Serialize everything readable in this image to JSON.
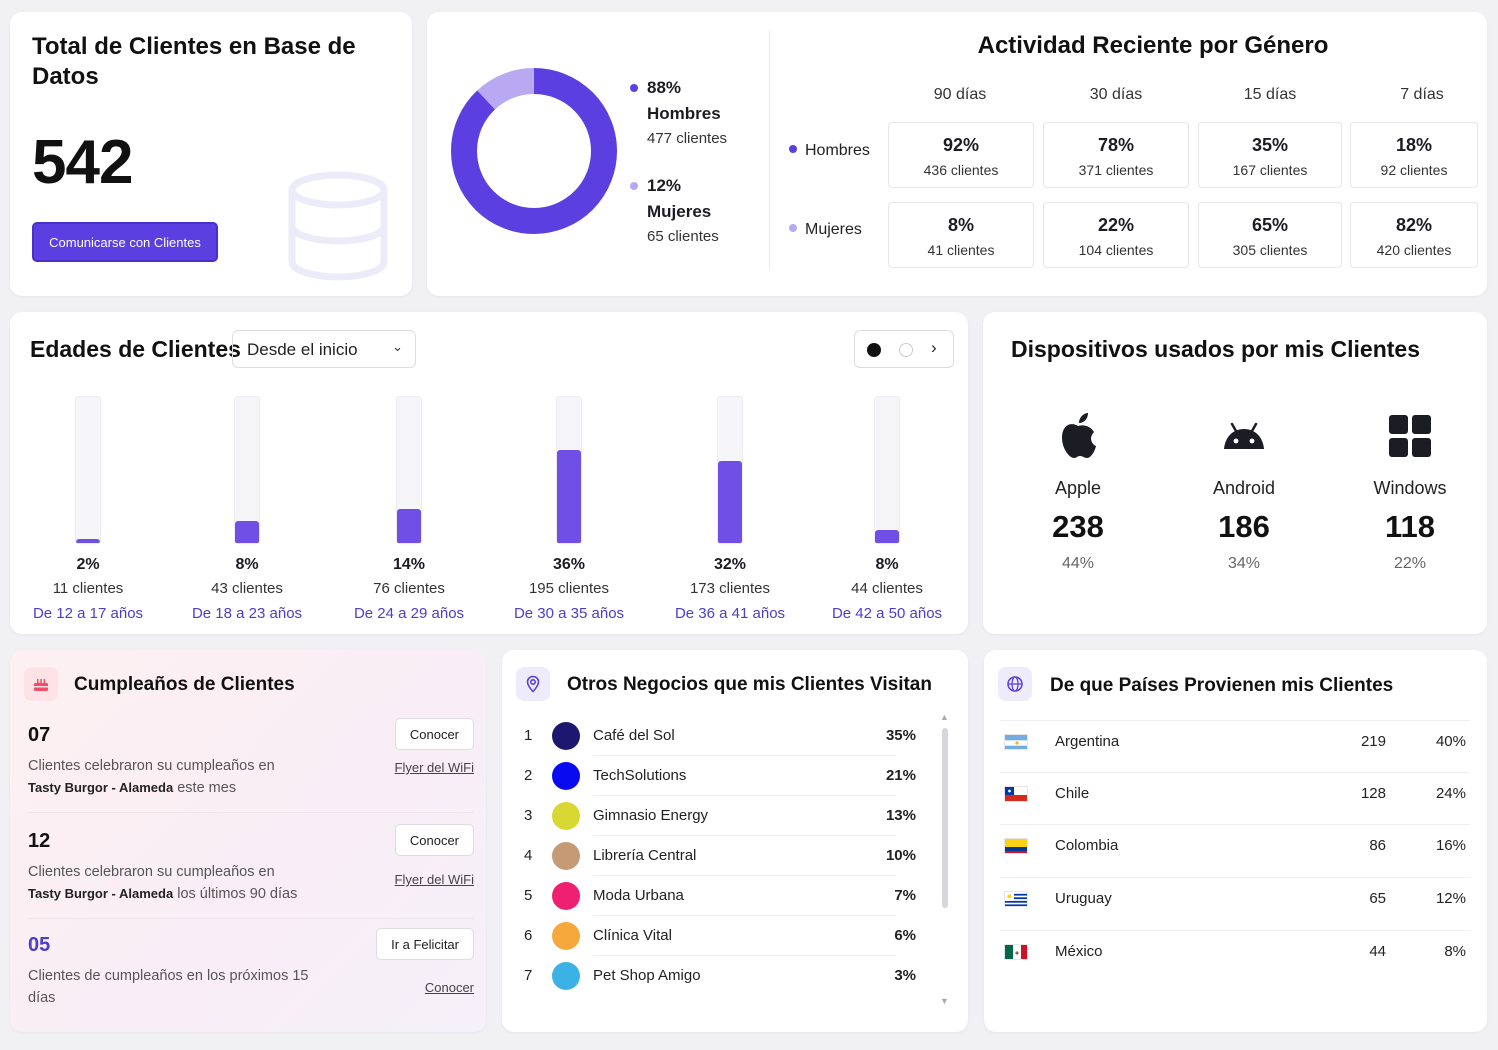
{
  "total": {
    "title": "Total de Clientes en Base de Datos",
    "count": "542",
    "button": "Comunicarse con Clientes",
    "icon": "database-icon"
  },
  "gender": {
    "legend": [
      {
        "pct": "88%",
        "name": "Hombres",
        "clients": "477 clientes",
        "color": "#5b3fe0"
      },
      {
        "pct": "12%",
        "name": "Mujeres",
        "clients": "65 clientes",
        "color": "#b9a9f3"
      }
    ],
    "donut": {
      "hombres_fraction": 0.88,
      "mujeres_fraction": 0.12
    },
    "activity": {
      "title": "Actividad Reciente por Género",
      "periods": [
        "90 días",
        "30 días",
        "15 días",
        "7 días"
      ],
      "rows": [
        {
          "label": "Hombres",
          "color": "#5b3fe0",
          "cells": [
            {
              "pct": "92%",
              "clients": "436 clientes"
            },
            {
              "pct": "78%",
              "clients": "371 clientes"
            },
            {
              "pct": "35%",
              "clients": "167 clientes"
            },
            {
              "pct": "18%",
              "clients": "92 clientes"
            }
          ]
        },
        {
          "label": "Mujeres",
          "color": "#b9a9f3",
          "cells": [
            {
              "pct": "8%",
              "clients": "41 clientes"
            },
            {
              "pct": "22%",
              "clients": "104 clientes"
            },
            {
              "pct": "65%",
              "clients": "305 clientes"
            },
            {
              "pct": "82%",
              "clients": "420 clientes"
            }
          ]
        }
      ]
    }
  },
  "ages": {
    "title": "Edades de Clientes",
    "filter": "Desde el inicio",
    "groups": [
      {
        "pct": "2%",
        "clients": "11 clientes",
        "range": "De 12 a 17 años",
        "fill": 0.03
      },
      {
        "pct": "8%",
        "clients": "43 clientes",
        "range": "De 18 a 23 años",
        "fill": 0.15
      },
      {
        "pct": "14%",
        "clients": "76 clientes",
        "range": "De 24 a 29 años",
        "fill": 0.23
      },
      {
        "pct": "36%",
        "clients": "195 clientes",
        "range": "De 30 a 35 años",
        "fill": 0.64
      },
      {
        "pct": "32%",
        "clients": "173 clientes",
        "range": "De 36 a 41 años",
        "fill": 0.56
      },
      {
        "pct": "8%",
        "clients": "44 clientes",
        "range": "De 42 a 50 años",
        "fill": 0.09
      }
    ],
    "accent": "#6f4fe6"
  },
  "devices": {
    "title": "Dispositivos usados por mis Clientes",
    "items": [
      {
        "name": "Apple",
        "count": "238",
        "pct": "44%",
        "icon": "apple-icon"
      },
      {
        "name": "Android",
        "count": "186",
        "pct": "34%",
        "icon": "android-icon"
      },
      {
        "name": "Windows",
        "count": "118",
        "pct": "22%",
        "icon": "windows-icon"
      }
    ]
  },
  "birthdays": {
    "title": "Cumpleaños de Clientes",
    "items": [
      {
        "num": "07",
        "text": "Clientes celebraron su cumpleaños en",
        "place": "Tasty Burgor - Alameda",
        "suffix": "este mes",
        "button": "Conocer",
        "link": "Flyer del WiFi"
      },
      {
        "num": "12",
        "text": "Clientes celebraron su cumpleaños en",
        "place": "Tasty Burgor - Alameda",
        "suffix": "los últimos 90 días",
        "button": "Conocer",
        "link": "Flyer del WiFi"
      },
      {
        "num": "05",
        "text": "Clientes de cumpleaños en los próximos 15 días",
        "button": "Ir a Felicitar",
        "link": "Conocer"
      }
    ]
  },
  "businesses": {
    "title": "Otros Negocios que mis Clientes Visitan",
    "items": [
      {
        "rank": "1",
        "name": "Café del Sol",
        "pct": "35%",
        "color": "#1e1770"
      },
      {
        "rank": "2",
        "name": "TechSolutions",
        "pct": "21%",
        "color": "#0a0af0"
      },
      {
        "rank": "3",
        "name": "Gimnasio Energy",
        "pct": "13%",
        "color": "#d8d832"
      },
      {
        "rank": "4",
        "name": "Librería Central",
        "pct": "10%",
        "color": "#c69a74"
      },
      {
        "rank": "5",
        "name": "Moda Urbana",
        "pct": "7%",
        "color": "#ef1f72"
      },
      {
        "rank": "6",
        "name": "Clínica Vital",
        "pct": "6%",
        "color": "#f5a93c"
      },
      {
        "rank": "7",
        "name": "Pet Shop Amigo",
        "pct": "3%",
        "color": "#3bb1e6"
      }
    ]
  },
  "countries": {
    "title": "De que Países Provienen mis Clientes",
    "items": [
      {
        "name": "Argentina",
        "value": "219",
        "pct": "40%",
        "flag": "argentina-flag-icon"
      },
      {
        "name": "Chile",
        "value": "128",
        "pct": "24%",
        "flag": "chile-flag-icon"
      },
      {
        "name": "Colombia",
        "value": "86",
        "pct": "16%",
        "flag": "colombia-flag-icon"
      },
      {
        "name": "Uruguay",
        "value": "65",
        "pct": "12%",
        "flag": "uruguay-flag-icon"
      },
      {
        "name": "México",
        "value": "44",
        "pct": "8%",
        "flag": "mexico-flag-icon"
      }
    ]
  }
}
